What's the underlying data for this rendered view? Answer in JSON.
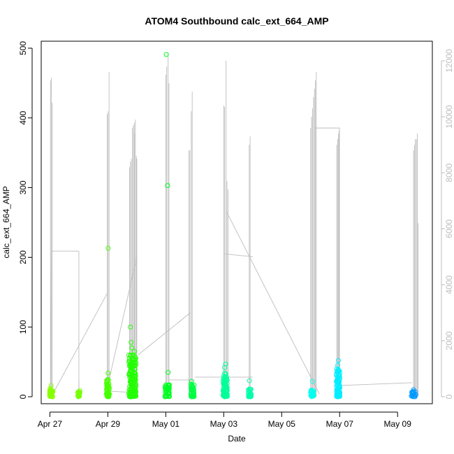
{
  "chart_data": {
    "type": "scatter",
    "title": "ATOM4 Southbound calc_ext_664_AMP",
    "xlabel": "Date",
    "ylabel": "calc_ext_664_AMP",
    "x_ticks": [
      "Apr 27",
      "Apr 29",
      "May 01",
      "May 03",
      "May 05",
      "May 07",
      "May 09"
    ],
    "y_ticks": [
      "0",
      "100",
      "200",
      "300",
      "400",
      "500"
    ],
    "y2_ticks": [
      "0",
      "2000",
      "4000",
      "6000",
      "8000",
      "10000",
      "12000"
    ],
    "ylim": [
      -10,
      510
    ],
    "y2lim": [
      -250,
      12700
    ],
    "xlim_days": [
      26.7,
      40.2
    ],
    "x_reference": "Apr",
    "grid": false,
    "frame_color": "#000000",
    "secondary_color": "#bdbdbd",
    "clusters": [
      {
        "day": 27.05,
        "width": 0.12,
        "color": "#88ff00",
        "low": 0,
        "high": 12,
        "outliers": [
          16
        ]
      },
      {
        "day": 28.0,
        "width": 0.08,
        "color": "#76ff00",
        "low": 0,
        "high": 9,
        "outliers": []
      },
      {
        "day": 29.0,
        "width": 0.1,
        "color": "#45ff00",
        "low": 0,
        "high": 25,
        "outliers": [
          213,
          34
        ]
      },
      {
        "day": 29.85,
        "width": 0.25,
        "color": "#22ff00",
        "low": 0,
        "high": 60,
        "outliers": [
          100,
          78,
          70,
          65
        ]
      },
      {
        "day": 31.05,
        "width": 0.15,
        "color": "#00ff22",
        "low": 0,
        "high": 18,
        "outliers": [
          491,
          303,
          35
        ]
      },
      {
        "day": 31.92,
        "width": 0.12,
        "color": "#00ff44",
        "low": 0,
        "high": 18,
        "outliers": [
          22
        ]
      },
      {
        "day": 33.05,
        "width": 0.15,
        "color": "#00ff99",
        "low": 0,
        "high": 35,
        "outliers": [
          47,
          42
        ]
      },
      {
        "day": 33.9,
        "width": 0.1,
        "color": "#00ffaa",
        "low": 0,
        "high": 12,
        "outliers": [
          23
        ]
      },
      {
        "day": 36.05,
        "width": 0.12,
        "color": "#00ffee",
        "low": 0,
        "high": 10,
        "outliers": [
          22
        ]
      },
      {
        "day": 36.95,
        "width": 0.12,
        "color": "#00eeff",
        "low": 0,
        "high": 40,
        "outliers": [
          52,
          45
        ]
      },
      {
        "day": 39.55,
        "width": 0.15,
        "color": "#0099ff",
        "low": 0,
        "high": 8,
        "outliers": [
          10
        ]
      }
    ],
    "secondary_series": {
      "name": "",
      "spikes": [
        {
          "day": 27.02,
          "values": [
            11300,
            11400,
            10500
          ]
        },
        {
          "day": 28.0,
          "values": [
            600
          ]
        },
        {
          "day": 28.98,
          "values": [
            10100,
            10200,
            11600
          ]
        },
        {
          "day": 29.75,
          "values": [
            8200,
            8400,
            8500
          ]
        },
        {
          "day": 29.85,
          "values": [
            9600,
            9700,
            9800
          ]
        },
        {
          "day": 29.92,
          "values": [
            9400,
            9900,
            8600
          ]
        },
        {
          "day": 30.0,
          "values": [
            8500
          ]
        },
        {
          "day": 31.0,
          "values": [
            11500,
            11800
          ]
        },
        {
          "day": 31.08,
          "values": [
            12300,
            11200
          ]
        },
        {
          "day": 31.8,
          "values": [
            8800,
            8800
          ]
        },
        {
          "day": 31.88,
          "values": [
            10200,
            10900
          ]
        },
        {
          "day": 33.0,
          "values": [
            10400,
            10350
          ]
        },
        {
          "day": 33.08,
          "values": [
            12000,
            7700
          ]
        },
        {
          "day": 33.15,
          "values": [
            7400
          ]
        },
        {
          "day": 33.88,
          "values": [
            9000,
            9300
          ]
        },
        {
          "day": 36.0,
          "values": [
            9600,
            10000,
            10300
          ]
        },
        {
          "day": 36.1,
          "values": [
            10700,
            11000,
            11300,
            11600
          ]
        },
        {
          "day": 36.9,
          "values": [
            9000,
            9200,
            9400,
            9600
          ]
        },
        {
          "day": 36.98,
          "values": [
            9500
          ]
        },
        {
          "day": 39.55,
          "values": [
            8800,
            9000,
            9200
          ]
        },
        {
          "day": 39.65,
          "values": [
            9200,
            9400,
            6200
          ]
        }
      ],
      "connectors": [
        [
          27.02,
          0,
          27.05,
          5200
        ],
        [
          27.05,
          5200,
          28.0,
          5200
        ],
        [
          28.0,
          5200,
          28.0,
          0
        ],
        [
          27.05,
          0,
          28.98,
          3700
        ],
        [
          28.98,
          200,
          29.9,
          150
        ],
        [
          29.0,
          400,
          30.0,
          5000
        ],
        [
          30.05,
          1500,
          31.85,
          3000
        ],
        [
          31.1,
          600,
          32.0,
          600
        ],
        [
          32.0,
          700,
          34.0,
          700
        ],
        [
          33.05,
          5100,
          34.0,
          5000
        ],
        [
          33.1,
          6600,
          36.3,
          100
        ],
        [
          36.15,
          9600,
          37.0,
          9600
        ],
        [
          37.0,
          400,
          39.5,
          500
        ]
      ]
    }
  }
}
